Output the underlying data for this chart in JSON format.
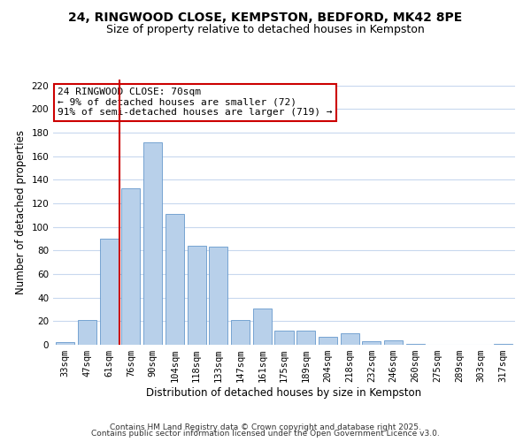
{
  "title_line1": "24, RINGWOOD CLOSE, KEMPSTON, BEDFORD, MK42 8PE",
  "title_line2": "Size of property relative to detached houses in Kempston",
  "xlabel": "Distribution of detached houses by size in Kempston",
  "ylabel": "Number of detached properties",
  "bar_labels": [
    "33sqm",
    "47sqm",
    "61sqm",
    "76sqm",
    "90sqm",
    "104sqm",
    "118sqm",
    "133sqm",
    "147sqm",
    "161sqm",
    "175sqm",
    "189sqm",
    "204sqm",
    "218sqm",
    "232sqm",
    "246sqm",
    "260sqm",
    "275sqm",
    "289sqm",
    "303sqm",
    "317sqm"
  ],
  "bar_values": [
    2,
    21,
    90,
    133,
    172,
    111,
    84,
    83,
    21,
    31,
    12,
    12,
    7,
    10,
    3,
    4,
    1,
    0,
    0,
    0,
    1
  ],
  "bar_color": "#b8d0ea",
  "bar_edge_color": "#6699cc",
  "vline_x_index": 2.5,
  "vline_color": "#cc0000",
  "annotation_title": "24 RINGWOOD CLOSE: 70sqm",
  "annotation_line1": "← 9% of detached houses are smaller (72)",
  "annotation_line2": "91% of semi-detached houses are larger (719) →",
  "annotation_box_color": "#ffffff",
  "annotation_box_edge_color": "#cc0000",
  "ylim": [
    0,
    225
  ],
  "yticks": [
    0,
    20,
    40,
    60,
    80,
    100,
    120,
    140,
    160,
    180,
    200,
    220
  ],
  "grid_color": "#c8d8ee",
  "background_color": "#ffffff",
  "footer_line1": "Contains HM Land Registry data © Crown copyright and database right 2025.",
  "footer_line2": "Contains public sector information licensed under the Open Government Licence v3.0.",
  "title_fontsize": 10,
  "subtitle_fontsize": 9,
  "axis_label_fontsize": 8.5,
  "tick_fontsize": 7.5,
  "annotation_fontsize": 8,
  "footer_fontsize": 6.5
}
